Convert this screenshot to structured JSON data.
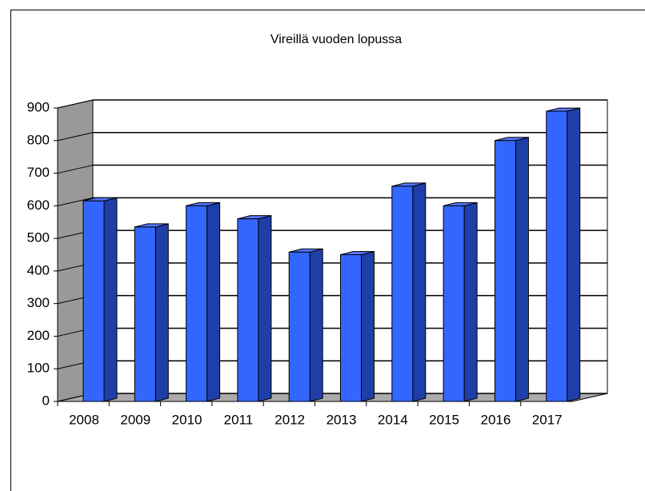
{
  "chart_data": {
    "type": "bar3d",
    "title": "Vireillä vuoden lopussa",
    "categories": [
      "2008",
      "2009",
      "2010",
      "2011",
      "2012",
      "2013",
      "2014",
      "2015",
      "2016",
      "2017"
    ],
    "values": [
      615,
      535,
      600,
      560,
      458,
      450,
      660,
      600,
      800,
      890
    ],
    "color": "#3366ff",
    "ylim": [
      0,
      900
    ],
    "yticks": [
      0,
      100,
      200,
      300,
      400,
      500,
      600,
      700,
      800,
      900
    ],
    "grid": true
  }
}
